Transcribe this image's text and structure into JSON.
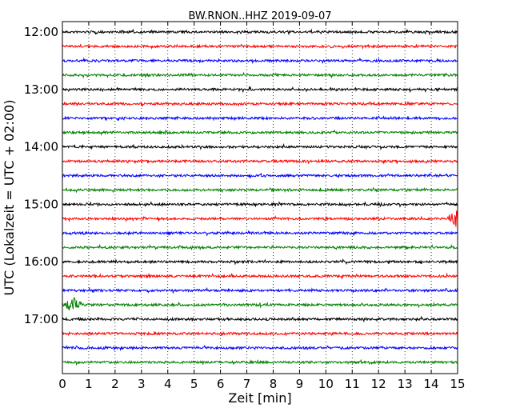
{
  "chart_data": {
    "type": "line",
    "title": "BW.RNON..HHZ 2019-09-07",
    "xlabel": "Zeit  [min]",
    "ylabel": "UTC (Lokalzeit = UTC + 02:00)",
    "xlim": [
      0,
      15
    ],
    "x_ticks": [
      "0",
      "1",
      "2",
      "3",
      "4",
      "5",
      "6",
      "7",
      "8",
      "9",
      "10",
      "11",
      "12",
      "13",
      "14",
      "15"
    ],
    "y_ticks": [
      {
        "label": "12:00",
        "row": 0
      },
      {
        "label": "13:00",
        "row": 4
      },
      {
        "label": "14:00",
        "row": 8
      },
      {
        "label": "15:00",
        "row": 12
      },
      {
        "label": "16:00",
        "row": 16
      },
      {
        "label": "17:00",
        "row": 20
      }
    ],
    "row_interval_minutes": 15,
    "row_colors": [
      "#000000",
      "#ff0000",
      "#0000ff",
      "#008000"
    ],
    "rows": [
      {
        "start": "12:00"
      },
      {
        "start": "12:15"
      },
      {
        "start": "12:30"
      },
      {
        "start": "12:45"
      },
      {
        "start": "13:00"
      },
      {
        "start": "13:15"
      },
      {
        "start": "13:30"
      },
      {
        "start": "13:45"
      },
      {
        "start": "14:00"
      },
      {
        "start": "14:15"
      },
      {
        "start": "14:30"
      },
      {
        "start": "14:45"
      },
      {
        "start": "15:00"
      },
      {
        "start": "15:15",
        "event_at_min": 14.9
      },
      {
        "start": "15:30"
      },
      {
        "start": "15:45"
      },
      {
        "start": "16:00"
      },
      {
        "start": "16:15"
      },
      {
        "start": "16:30"
      },
      {
        "start": "16:45",
        "event_at_min": 0.4
      },
      {
        "start": "17:00"
      },
      {
        "start": "17:15"
      },
      {
        "start": "17:30"
      },
      {
        "start": "17:45"
      }
    ],
    "grid": "vertical-dotted"
  }
}
